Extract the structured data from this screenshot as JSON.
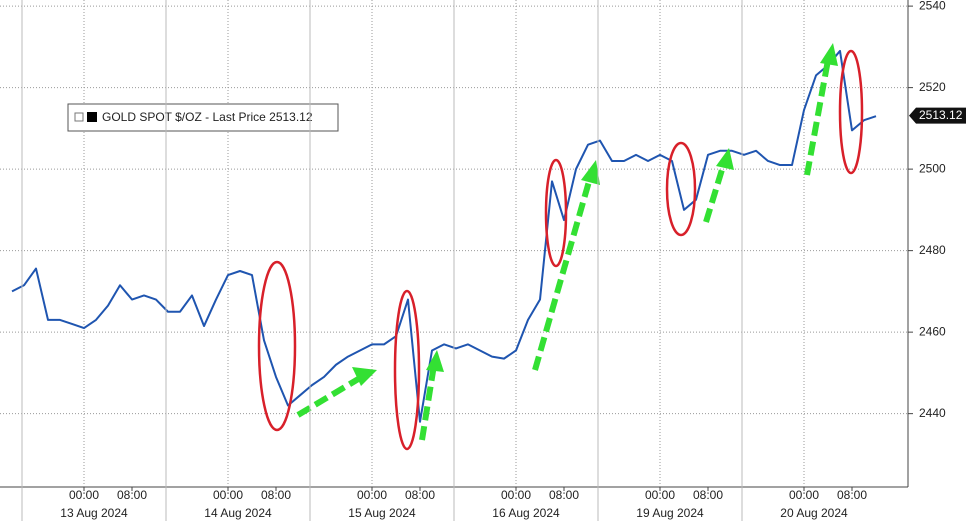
{
  "chart_data": {
    "type": "line",
    "x": [
      "2024-08-12T12:00",
      "2024-08-12T14:00",
      "2024-08-12T16:00",
      "2024-08-12T18:00",
      "2024-08-12T20:00",
      "2024-08-12T22:00",
      "2024-08-13T00:00",
      "2024-08-13T02:00",
      "2024-08-13T04:00",
      "2024-08-13T06:00",
      "2024-08-13T08:00",
      "2024-08-13T10:00",
      "2024-08-13T12:00",
      "2024-08-13T14:00",
      "2024-08-13T16:00",
      "2024-08-13T18:00",
      "2024-08-13T20:00",
      "2024-08-13T22:00",
      "2024-08-14T00:00",
      "2024-08-14T02:00",
      "2024-08-14T04:00",
      "2024-08-14T06:00",
      "2024-08-14T08:00",
      "2024-08-14T10:00",
      "2024-08-14T12:00",
      "2024-08-14T14:00",
      "2024-08-14T16:00",
      "2024-08-14T18:00",
      "2024-08-14T20:00",
      "2024-08-14T22:00",
      "2024-08-15T00:00",
      "2024-08-15T02:00",
      "2024-08-15T04:00",
      "2024-08-15T06:00",
      "2024-08-15T08:00",
      "2024-08-15T10:00",
      "2024-08-15T12:00",
      "2024-08-15T14:00",
      "2024-08-15T16:00",
      "2024-08-15T18:00",
      "2024-08-15T20:00",
      "2024-08-15T22:00",
      "2024-08-16T00:00",
      "2024-08-16T02:00",
      "2024-08-16T04:00",
      "2024-08-16T06:00",
      "2024-08-16T08:00",
      "2024-08-16T10:00",
      "2024-08-16T12:00",
      "2024-08-16T14:00",
      "2024-08-16T16:00",
      "2024-08-16T18:00",
      "2024-08-16T20:00",
      "2024-08-16T22:00",
      "2024-08-19T00:00",
      "2024-08-19T02:00",
      "2024-08-19T04:00",
      "2024-08-19T06:00",
      "2024-08-19T08:00",
      "2024-08-19T10:00",
      "2024-08-19T12:00",
      "2024-08-19T14:00",
      "2024-08-19T16:00",
      "2024-08-19T18:00",
      "2024-08-19T20:00",
      "2024-08-19T22:00",
      "2024-08-20T00:00",
      "2024-08-20T02:00",
      "2024-08-20T04:00",
      "2024-08-20T06:00",
      "2024-08-20T08:00",
      "2024-08-20T10:00",
      "2024-08-20T12:00"
    ],
    "series": [
      {
        "name": "GOLD SPOT $/OZ - Last Price 2513.12",
        "color": "#1f55b0",
        "values": [
          2470,
          2471.5,
          2475.6,
          2463,
          2463,
          2462,
          2461,
          2463,
          2466.5,
          2471.5,
          2468,
          2469,
          2468,
          2465,
          2465,
          2469,
          2461.5,
          2468,
          2474,
          2475,
          2474,
          2458,
          2449,
          2442,
          2444.5,
          2447,
          2449,
          2452,
          2454,
          2455.5,
          2457,
          2457,
          2459,
          2468,
          2438,
          2455.5,
          2457,
          2456,
          2457,
          2455.5,
          2454,
          2453.5,
          2455.5,
          2463,
          2468,
          2497,
          2487.5,
          2500,
          2506,
          2507,
          2502,
          2502,
          2503.5,
          2502,
          2503.5,
          2502,
          2490,
          2492.5,
          2503.5,
          2504.5,
          2504.5,
          2503.5,
          2504.5,
          2502,
          2501,
          2501,
          2514.5,
          2523,
          2525.5,
          2529,
          2509.5,
          2512,
          2513
        ]
      }
    ],
    "last_price": 2513.12,
    "ylim": [
      2422,
      2541.5
    ],
    "yticks": [
      2440,
      2460,
      2480,
      2500,
      2520,
      2540
    ],
    "xticks": [
      {
        "value": "2024-08-13T00:00",
        "label": "00:00"
      },
      {
        "value": "2024-08-13T08:00",
        "label": "08:00"
      },
      {
        "value": "2024-08-14T00:00",
        "label": "00:00"
      },
      {
        "value": "2024-08-14T08:00",
        "label": "08:00"
      },
      {
        "value": "2024-08-15T00:00",
        "label": "00:00"
      },
      {
        "value": "2024-08-15T08:00",
        "label": "08:00"
      },
      {
        "value": "2024-08-16T00:00",
        "label": "00:00"
      },
      {
        "value": "2024-08-16T08:00",
        "label": "08:00"
      },
      {
        "value": "2024-08-19T00:00",
        "label": "00:00"
      },
      {
        "value": "2024-08-19T08:00",
        "label": "08:00"
      },
      {
        "value": "2024-08-20T00:00",
        "label": "00:00"
      },
      {
        "value": "2024-08-20T08:00",
        "label": "08:00"
      }
    ],
    "date_labels": [
      {
        "value": "2024-08-13T00:00",
        "label": "13 Aug 2024"
      },
      {
        "value": "2024-08-14T00:00",
        "label": "14 Aug 2024"
      },
      {
        "value": "2024-08-15T00:00",
        "label": "15 Aug 2024"
      },
      {
        "value": "2024-08-16T00:00",
        "label": "16 Aug 2024"
      },
      {
        "value": "2024-08-19T00:00",
        "label": "19 Aug 2024"
      },
      {
        "value": "2024-08-20T00:00",
        "label": "20 Aug 2024"
      }
    ],
    "grid": true
  }
}
